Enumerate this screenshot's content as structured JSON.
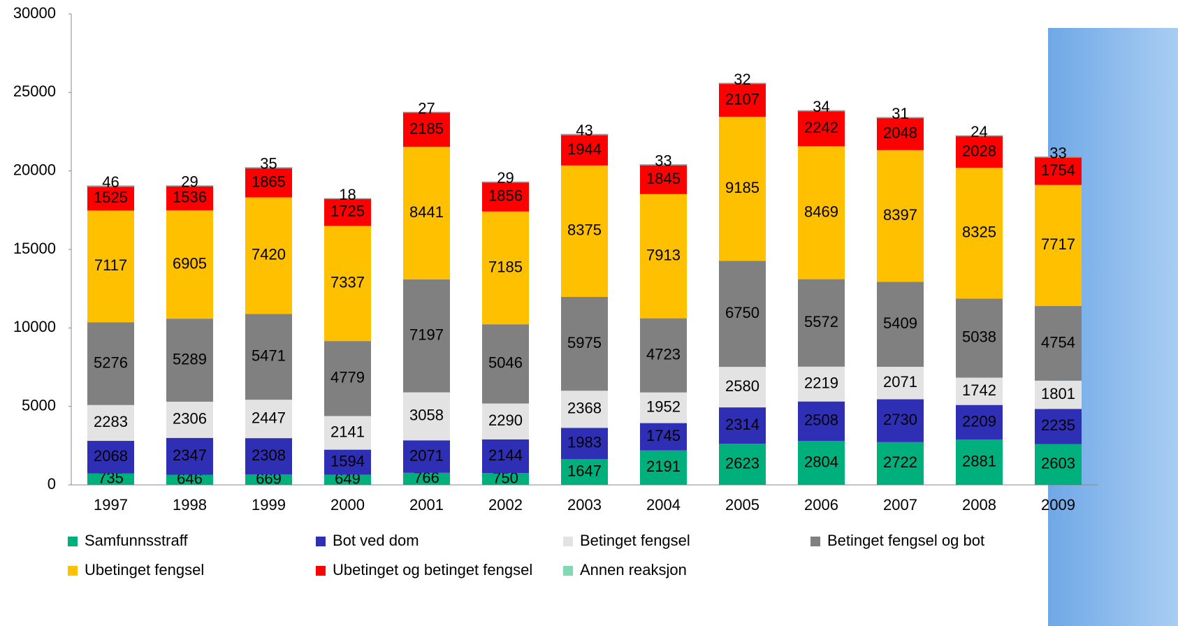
{
  "chart_data": {
    "type": "stacked_bar",
    "categories": [
      "1997",
      "1998",
      "1999",
      "2000",
      "2001",
      "2002",
      "2003",
      "2004",
      "2005",
      "2006",
      "2007",
      "2008",
      "2009"
    ],
    "series": [
      {
        "name": "Samfunnsstraff",
        "color": "#00b07c",
        "values": [
          735,
          646,
          669,
          649,
          766,
          750,
          1647,
          2191,
          2623,
          2804,
          2722,
          2881,
          2603
        ]
      },
      {
        "name": "Bot ved dom",
        "color": "#2f2fb5",
        "values": [
          2068,
          2347,
          2308,
          1594,
          2071,
          2144,
          1983,
          1745,
          2314,
          2508,
          2730,
          2209,
          2235
        ]
      },
      {
        "name": "Betinget fengsel",
        "color": "#e3e3e3",
        "values": [
          2283,
          2306,
          2447,
          2141,
          3058,
          2290,
          2368,
          1952,
          2580,
          2219,
          2071,
          1742,
          1801
        ]
      },
      {
        "name": "Betinget fengsel og bot",
        "color": "#808080",
        "values": [
          5276,
          5289,
          5471,
          4779,
          7197,
          5046,
          5975,
          4723,
          6750,
          5572,
          5409,
          5038,
          4754
        ]
      },
      {
        "name": "Ubetinget fengsel",
        "color": "#ffc000",
        "values": [
          7117,
          6905,
          7420,
          7337,
          8441,
          7185,
          8375,
          7913,
          9185,
          8469,
          8397,
          8325,
          7717
        ]
      },
      {
        "name": "Ubetinget og betinget fengsel",
        "color": "#ff0000",
        "values": [
          1525,
          1536,
          1865,
          1725,
          2185,
          1856,
          1944,
          1845,
          2107,
          2242,
          2048,
          2028,
          1754
        ]
      },
      {
        "name": "Annen reaksjon",
        "color": "#80d8b5",
        "values": [
          46,
          29,
          35,
          18,
          27,
          29,
          43,
          33,
          32,
          34,
          31,
          24,
          33
        ]
      }
    ],
    "ylim": [
      0,
      30000
    ],
    "yticks": [
      0,
      5000,
      10000,
      15000,
      20000,
      25000,
      30000
    ],
    "grid": false
  }
}
